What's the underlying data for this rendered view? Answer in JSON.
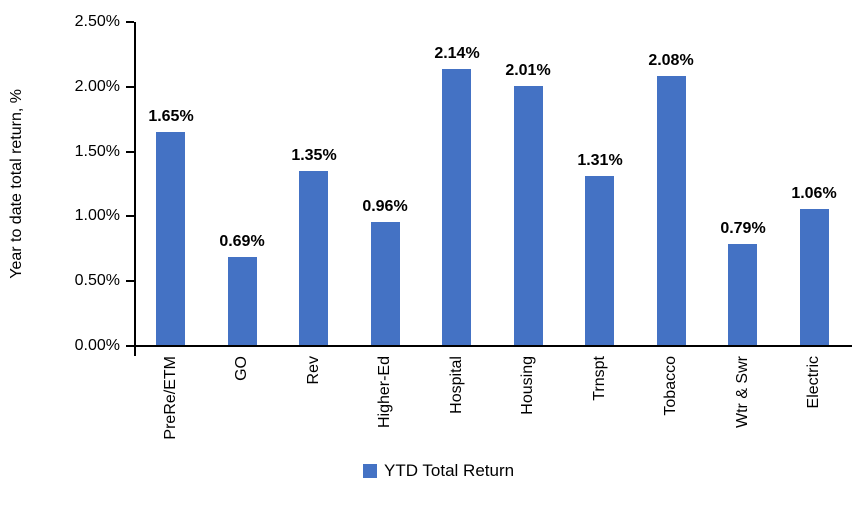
{
  "chart_data": {
    "type": "bar",
    "title": "",
    "xlabel": "",
    "ylabel": "Year to date total return, %",
    "categories": [
      "PreRe/ETM",
      "GO",
      "Rev",
      "Higher-Ed",
      "Hospital",
      "Housing",
      "Trnspt",
      "Tobacco",
      "Wtr & Swr",
      "Electric"
    ],
    "values": [
      1.65,
      0.69,
      1.35,
      0.96,
      2.14,
      2.01,
      1.31,
      2.08,
      0.79,
      1.06
    ],
    "value_labels": [
      "1.65%",
      "0.69%",
      "1.35%",
      "0.96%",
      "2.14%",
      "2.01%",
      "1.31%",
      "2.08%",
      "0.79%",
      "1.06%"
    ],
    "ylim": [
      0,
      2.5
    ],
    "ytick_values": [
      0.0,
      0.5,
      1.0,
      1.5,
      2.0,
      2.5
    ],
    "ytick_labels": [
      "0.00%",
      "0.50%",
      "1.00%",
      "1.50%",
      "2.00%",
      "2.50%"
    ],
    "grid": false,
    "legend_position": "bottom",
    "legend": [
      "YTD Total Return"
    ],
    "colors": {
      "bar": "#4472C4",
      "axis": "#000000",
      "text": "#000000",
      "background": "#FFFFFF"
    }
  }
}
